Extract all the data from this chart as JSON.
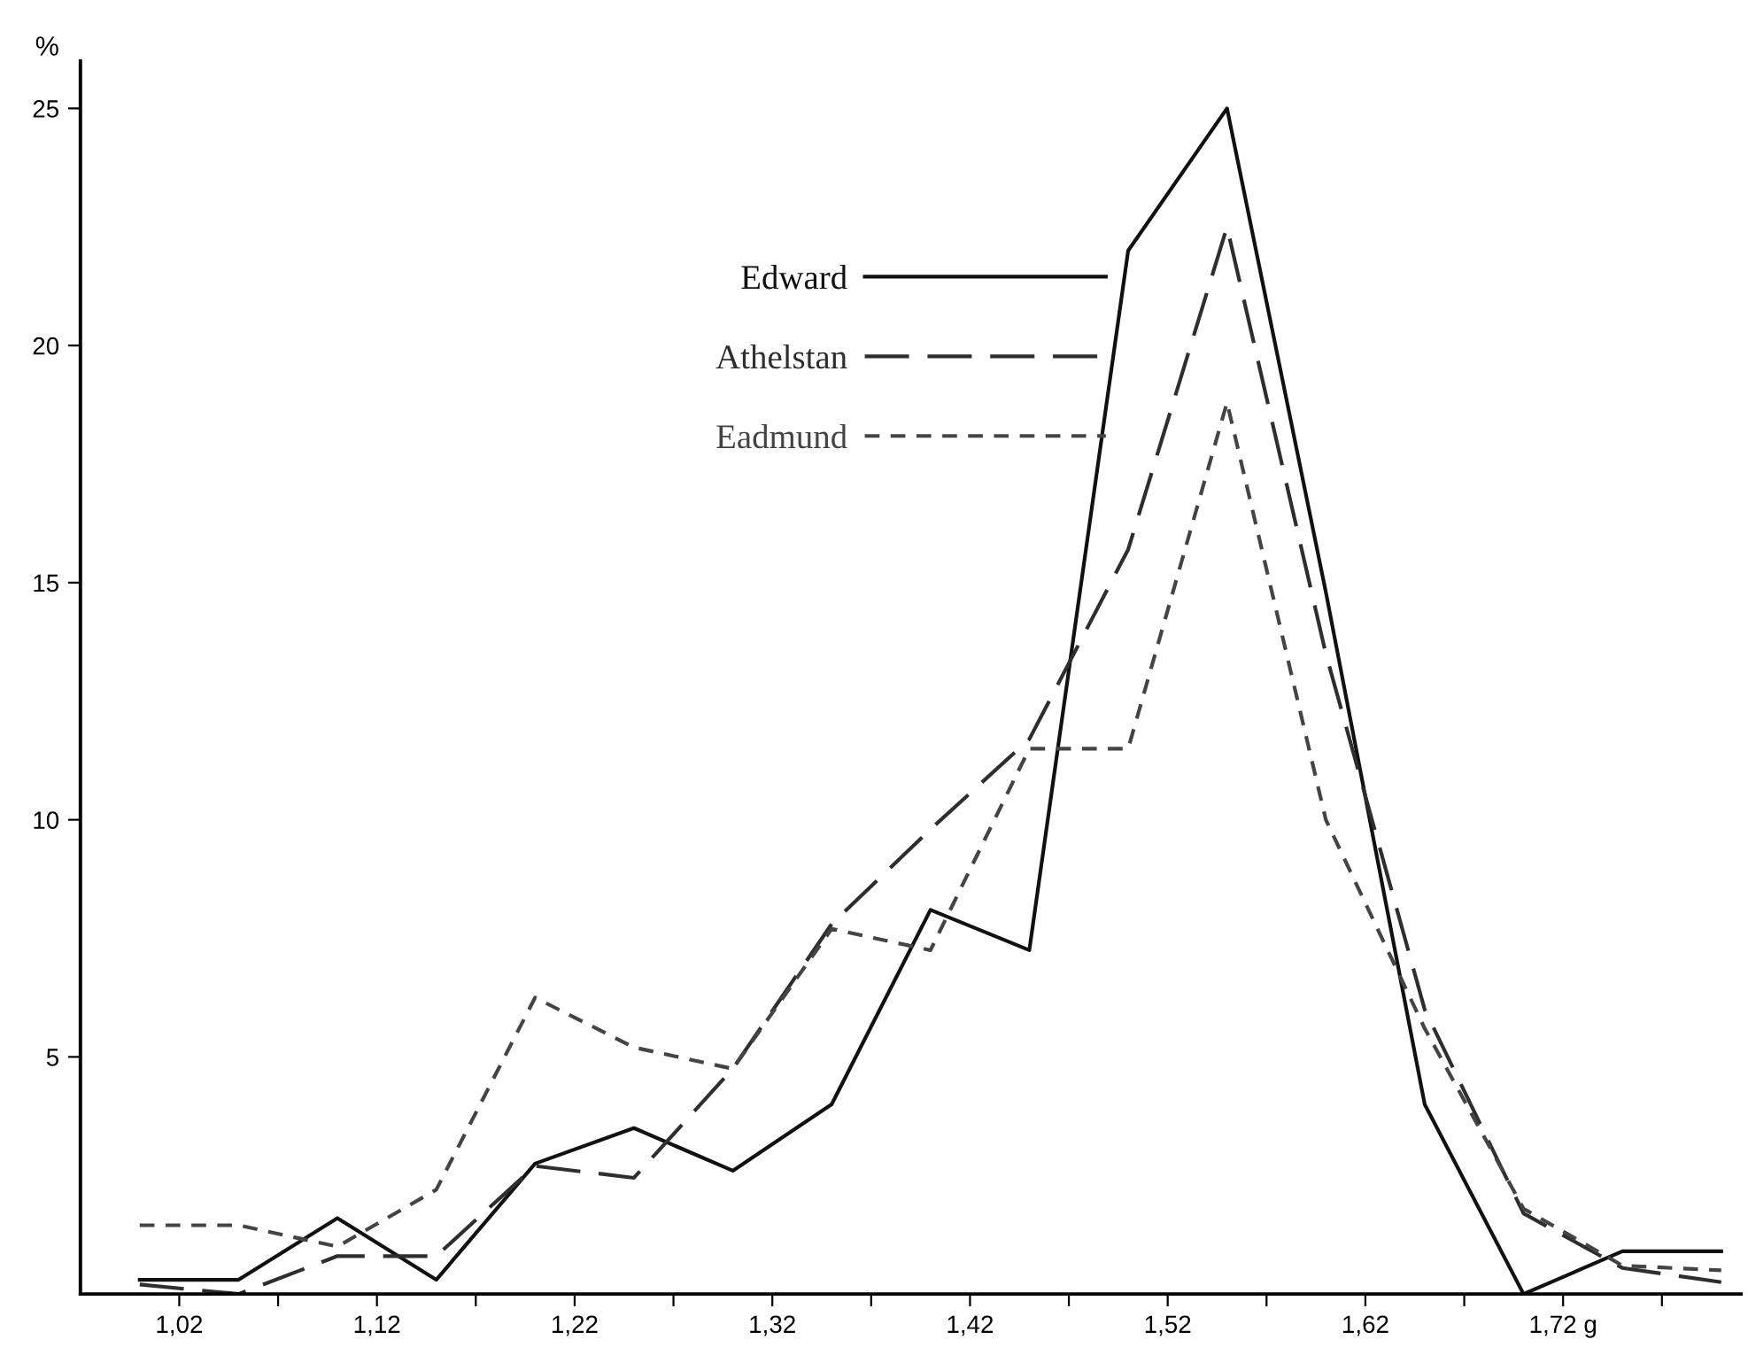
{
  "chart_data": {
    "type": "line",
    "ylabel": "%",
    "x": [
      1.0,
      1.05,
      1.1,
      1.15,
      1.2,
      1.25,
      1.3,
      1.35,
      1.4,
      1.45,
      1.5,
      1.55,
      1.6,
      1.65,
      1.7,
      1.75,
      1.8
    ],
    "series": [
      {
        "name": "Edward",
        "color": "#111111",
        "line_style": "solid",
        "values": [
          0.3,
          0.3,
          1.6,
          0.3,
          2.75,
          3.5,
          2.6,
          4.0,
          8.1,
          7.25,
          22,
          25,
          14.8,
          4.0,
          0,
          0.9,
          0.9
        ]
      },
      {
        "name": "Athelstan",
        "color": "#2e2e2e",
        "line_style": "dashed",
        "values": [
          0.2,
          0,
          0.8,
          0.8,
          2.7,
          2.45,
          4.75,
          7.8,
          9.8,
          11.7,
          15.7,
          22.5,
          13.5,
          6.0,
          1.7,
          0.55,
          0.25
        ]
      },
      {
        "name": "Eadmund",
        "color": "#444444",
        "line_style": "dotted",
        "values": [
          1.45,
          1.45,
          1.0,
          2.2,
          6.25,
          5.2,
          4.75,
          7.7,
          7.25,
          11.5,
          11.5,
          18.8,
          10.0,
          5.6,
          1.8,
          0.6,
          0.5
        ]
      }
    ],
    "xlim": [
      0.97,
      1.81
    ],
    "ylim": [
      0,
      26
    ],
    "xticks": [
      {
        "value": 1.02,
        "label": "1,02"
      },
      {
        "value": 1.07,
        "label": null
      },
      {
        "value": 1.12,
        "label": "1,12"
      },
      {
        "value": 1.17,
        "label": null
      },
      {
        "value": 1.22,
        "label": "1,22"
      },
      {
        "value": 1.27,
        "label": null
      },
      {
        "value": 1.32,
        "label": "1,32"
      },
      {
        "value": 1.37,
        "label": null
      },
      {
        "value": 1.42,
        "label": "1,42"
      },
      {
        "value": 1.47,
        "label": null
      },
      {
        "value": 1.52,
        "label": "1,52"
      },
      {
        "value": 1.57,
        "label": null
      },
      {
        "value": 1.62,
        "label": "1,62"
      },
      {
        "value": 1.67,
        "label": null
      },
      {
        "value": 1.72,
        "label": "1,72 g"
      },
      {
        "value": 1.77,
        "label": null
      }
    ],
    "yticks": [
      5,
      10,
      15,
      20,
      25
    ],
    "grid": false,
    "legend": "top"
  }
}
